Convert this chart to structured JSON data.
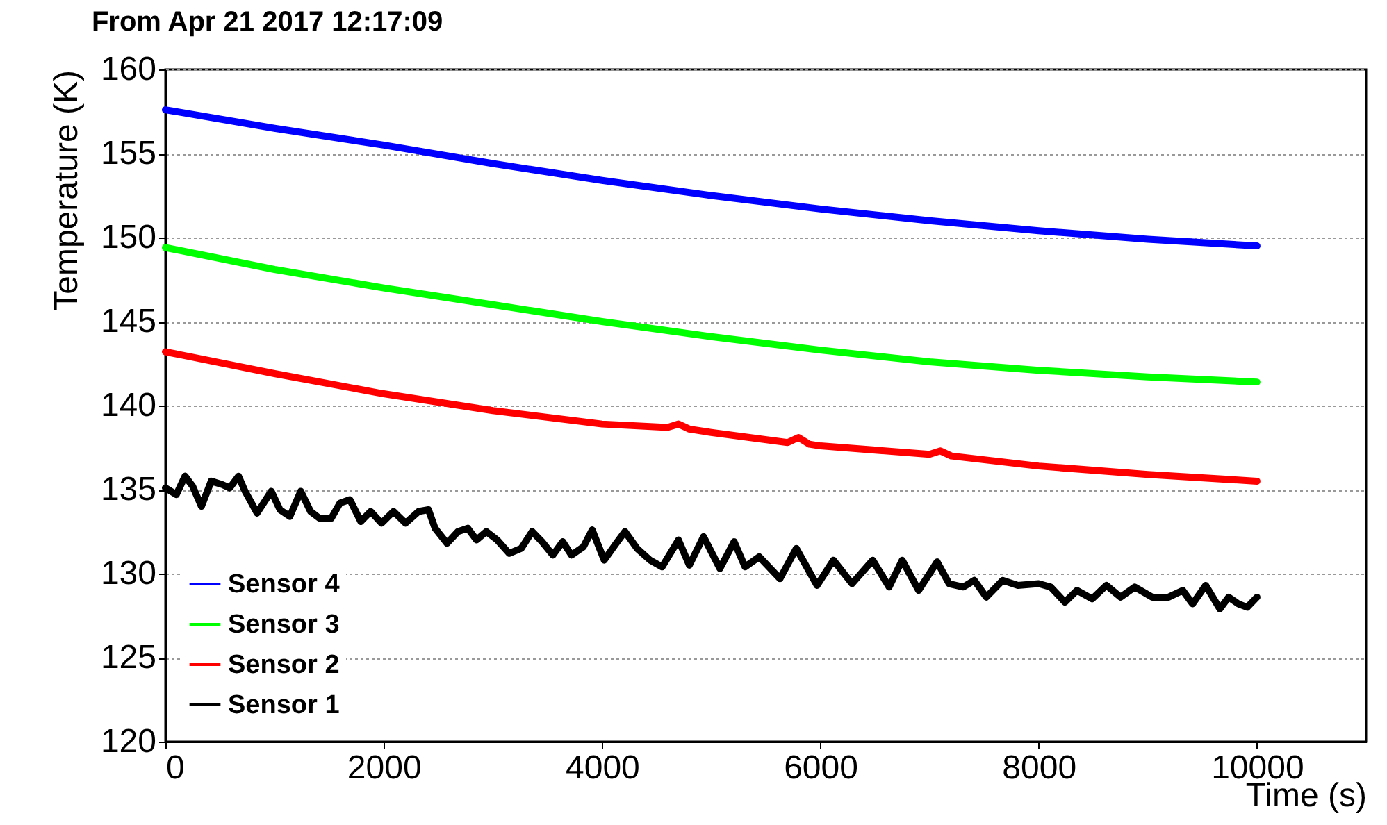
{
  "chart_data": {
    "type": "line",
    "title": "From Apr 21 2017 12:17:09",
    "xlabel": "Time (s)",
    "ylabel": "Temperature (K)",
    "xlim": [
      0,
      11000
    ],
    "xticks": [
      0,
      2000,
      4000,
      6000,
      8000,
      10000
    ],
    "ylim": [
      120,
      160
    ],
    "yticks": [
      120,
      125,
      130,
      135,
      140,
      145,
      150,
      155,
      160
    ],
    "grid": "y",
    "legend": "bottom left",
    "line_style": "solid",
    "series": [
      {
        "name": "Sensor 4",
        "color": "#0000ff",
        "x": [
          0,
          1000,
          2000,
          3000,
          4000,
          5000,
          6000,
          7000,
          8000,
          9000,
          10000
        ],
        "values": [
          157.6,
          156.5,
          155.5,
          154.4,
          153.4,
          152.5,
          151.7,
          151.0,
          150.4,
          149.9,
          149.5
        ]
      },
      {
        "name": "Sensor 3",
        "color": "#00ff00",
        "x": [
          0,
          1000,
          2000,
          3000,
          4000,
          5000,
          6000,
          7000,
          8000,
          9000,
          10000
        ],
        "values": [
          149.4,
          148.1,
          147.0,
          146.0,
          145.0,
          144.1,
          143.3,
          142.6,
          142.1,
          141.7,
          141.4
        ]
      },
      {
        "name": "Sensor 2",
        "color": "#ff0000",
        "x": [
          0,
          1000,
          2000,
          3000,
          4000,
          4600,
          4700,
          4800,
          5000,
          5700,
          5800,
          5900,
          6000,
          7000,
          7100,
          7200,
          8000,
          9000,
          10000
        ],
        "values": [
          143.2,
          141.9,
          140.7,
          139.7,
          138.9,
          138.7,
          138.9,
          138.6,
          138.4,
          137.8,
          138.1,
          137.7,
          137.6,
          137.1,
          137.3,
          137.0,
          136.4,
          135.9,
          135.5
        ]
      },
      {
        "name": "Sensor 1",
        "color": "#000000",
        "x": [
          0,
          100,
          180,
          250,
          330,
          420,
          520,
          590,
          670,
          730,
          840,
          970,
          1050,
          1140,
          1240,
          1330,
          1410,
          1520,
          1600,
          1690,
          1790,
          1880,
          1980,
          2090,
          2200,
          2320,
          2410,
          2470,
          2580,
          2680,
          2770,
          2850,
          2940,
          3040,
          3150,
          3260,
          3360,
          3450,
          3550,
          3640,
          3720,
          3830,
          3910,
          4020,
          4130,
          4210,
          4320,
          4440,
          4550,
          4700,
          4800,
          4930,
          5080,
          5210,
          5310,
          5440,
          5630,
          5780,
          5970,
          6120,
          6290,
          6480,
          6630,
          6750,
          6900,
          7070,
          7180,
          7310,
          7410,
          7520,
          7670,
          7810,
          8000,
          8110,
          8240,
          8350,
          8490,
          8620,
          8750,
          8880,
          9040,
          9190,
          9320,
          9410,
          9530,
          9660,
          9740,
          9830,
          9910,
          10000
        ],
        "values": [
          135.1,
          134.7,
          135.8,
          135.2,
          134.0,
          135.5,
          135.3,
          135.1,
          135.8,
          134.9,
          133.6,
          134.9,
          133.8,
          133.4,
          134.9,
          133.7,
          133.3,
          133.3,
          134.2,
          134.4,
          133.1,
          133.7,
          133.0,
          133.7,
          133.0,
          133.7,
          133.8,
          132.7,
          131.8,
          132.5,
          132.7,
          132.0,
          132.5,
          132.0,
          131.2,
          131.5,
          132.5,
          131.9,
          131.1,
          131.9,
          131.1,
          131.6,
          132.6,
          130.8,
          131.8,
          132.5,
          131.5,
          130.8,
          130.4,
          132.0,
          130.5,
          132.2,
          130.3,
          131.9,
          130.4,
          131.0,
          129.7,
          131.5,
          129.3,
          130.8,
          129.4,
          130.8,
          129.2,
          130.8,
          129.0,
          130.7,
          129.4,
          129.2,
          129.6,
          128.6,
          129.6,
          129.3,
          129.4,
          129.2,
          128.3,
          129.0,
          128.5,
          129.3,
          128.6,
          129.2,
          128.6,
          128.6,
          129.0,
          128.2,
          129.3,
          127.9,
          128.6,
          128.2,
          128.0,
          128.6
        ]
      }
    ]
  }
}
